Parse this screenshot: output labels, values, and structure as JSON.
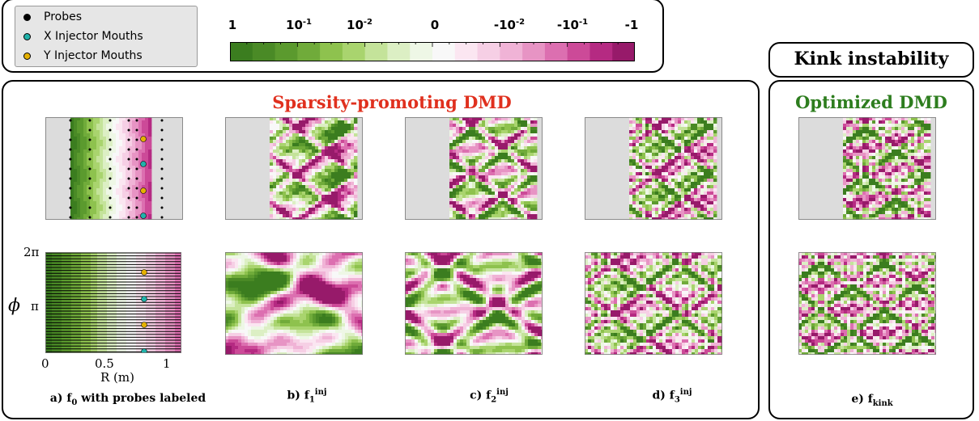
{
  "legend": {
    "probes": "Probes",
    "x_injector": "X Injector Mouths",
    "y_injector": "Y Injector Mouths"
  },
  "colorbar": {
    "ticks": [
      {
        "base": "1",
        "exp": ""
      },
      {
        "base": "10",
        "exp": "-1"
      },
      {
        "base": "10",
        "exp": "-2"
      },
      {
        "base": "0",
        "exp": ""
      },
      {
        "base": "-10",
        "exp": "-2"
      },
      {
        "base": "-10",
        "exp": "-1"
      },
      {
        "base": "-1",
        "exp": ""
      }
    ],
    "colors": [
      "#3b7d1f",
      "#4a8a26",
      "#5b9a2e",
      "#70ab3a",
      "#8ec24e",
      "#a9d46e",
      "#c4e39a",
      "#dcefc4",
      "#eef7e6",
      "#f8f8f8",
      "#fbe6f1",
      "#f6cfe5",
      "#f0b3d6",
      "#e794c4",
      "#dc6fb0",
      "#cc4a98",
      "#b52a82",
      "#971a6a"
    ]
  },
  "titles": {
    "kink": "Kink instability",
    "sparsity": "Sparsity-promoting DMD",
    "optimized": "Optimized DMD"
  },
  "axes": {
    "y_2pi": "2π",
    "y_pi": "π",
    "y_label": "ϕ",
    "x_0": "0",
    "x_05": "0.5",
    "x_1": "1",
    "x_label": "R (m)"
  },
  "captions": {
    "a": "a) f",
    "a_sub": "0",
    "a_rest": " with probes labeled",
    "b": "b) f",
    "b_sub": "1",
    "b_sup": "inj",
    "c": "c) f",
    "c_sub": "2",
    "c_sup": "inj",
    "d": "d) f",
    "d_sub": "3",
    "d_sup": "inj",
    "e": "e) f",
    "e_sub": "kink"
  },
  "marker_colors": {
    "probe": "#000000",
    "x_injector": "#20b2aa",
    "y_injector": "#e5b100"
  }
}
